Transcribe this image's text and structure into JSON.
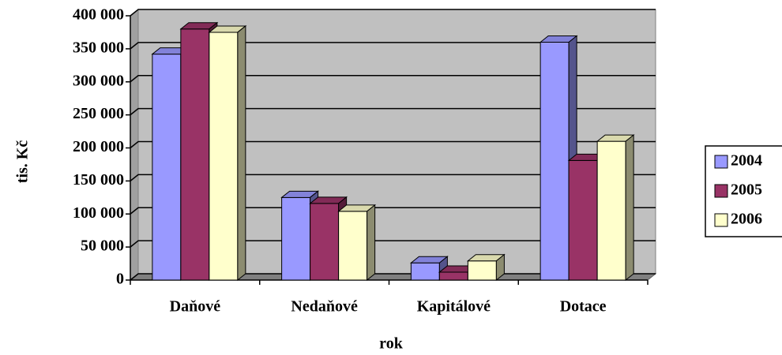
{
  "chart_data": {
    "type": "bar3d",
    "categories": [
      "Daňové",
      "Nedaňové",
      "Kapitálové",
      "Dotace"
    ],
    "series": [
      {
        "name": "2004",
        "color": "#9999ff",
        "values": [
          342000,
          125000,
          26000,
          360000
        ]
      },
      {
        "name": "2005",
        "color": "#993366",
        "values": [
          380000,
          116000,
          12000,
          181000
        ]
      },
      {
        "name": "2006",
        "color": "#ffffcc",
        "values": [
          375000,
          104000,
          29000,
          210000
        ]
      }
    ],
    "ylim": [
      0,
      400000
    ],
    "yticks": [
      {
        "value": 0,
        "label": "0"
      },
      {
        "value": 50000,
        "label": "50 000"
      },
      {
        "value": 100000,
        "label": "100 000"
      },
      {
        "value": 150000,
        "label": "150 000"
      },
      {
        "value": 200000,
        "label": "200 000"
      },
      {
        "value": 250000,
        "label": "250 000"
      },
      {
        "value": 300000,
        "label": "300 000"
      },
      {
        "value": 350000,
        "label": "350 000"
      },
      {
        "value": 400000,
        "label": "400 000"
      }
    ],
    "y_label": "tis. Kč",
    "x_label": "rok",
    "grid": true,
    "legend": "right"
  }
}
